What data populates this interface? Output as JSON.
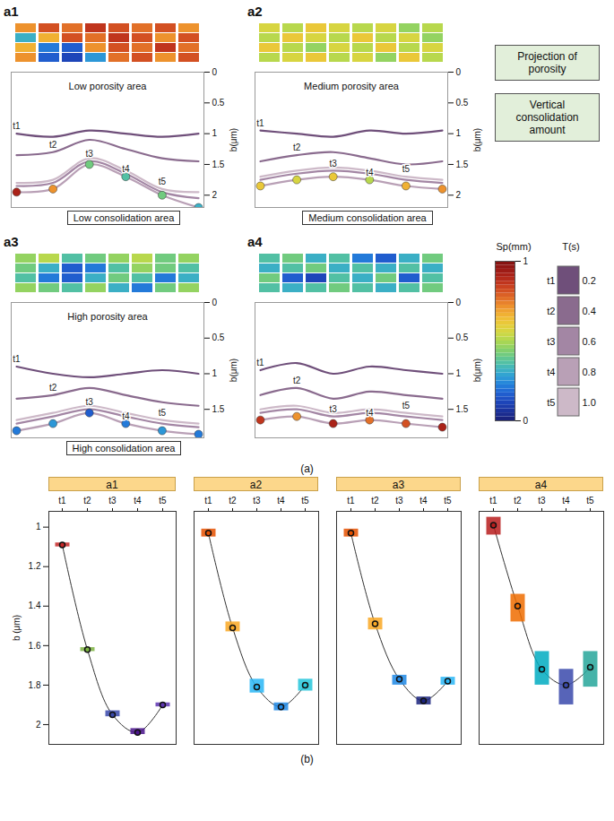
{
  "chart_data": [
    {
      "type": "surface",
      "caption": "(a)",
      "ylabel": "b(μm)",
      "xlim": [
        1,
        6
      ],
      "tick_labels": "y",
      "positions": [
        1,
        2,
        3,
        4,
        5,
        6
      ],
      "notes": [
        "Projection of porosity",
        "Vertical consolidation amount"
      ],
      "porosity_colorbar": {
        "title": "Sp(mm)",
        "range": [
          0,
          1
        ],
        "ticks": [
          0,
          1
        ],
        "colors": [
          "#1a237e",
          "#1e4fd8",
          "#29b6e6",
          "#7fd15a",
          "#f5e33b",
          "#f28b2c",
          "#c0241c",
          "#7a0f0f"
        ]
      },
      "time_legend": {
        "title": "T(s)",
        "names": [
          "t1",
          "t2",
          "t3",
          "t4",
          "t5"
        ],
        "values": [
          0.2,
          0.4,
          0.6,
          0.8,
          1
        ],
        "value_labels": [
          "0.2",
          "0.4",
          "0.6",
          "0.8",
          "1.0"
        ],
        "colors": [
          "#6f4f7a",
          "#8a6b8e",
          "#a386a4",
          "#b9a0b6",
          "#cdb9c8"
        ]
      },
      "panels": [
        {
          "title": "a1",
          "ylim": [
            0,
            2.2
          ],
          "yticks": [
            0,
            0.5,
            1,
            1.5,
            2
          ],
          "porosity": [
            [
              0.7,
              0.8,
              0.75,
              0.85,
              0.8,
              0.75,
              0.8,
              0.7
            ],
            [
              0.3,
              0.65,
              0.8,
              0.75,
              0.85,
              0.8,
              0.7,
              0.8
            ],
            [
              0.65,
              0.2,
              0.15,
              0.7,
              0.8,
              0.75,
              0.85,
              0.75
            ],
            [
              0.7,
              0.15,
              0.1,
              0.25,
              0.75,
              0.8,
              0.7,
              0.8
            ]
          ],
          "layers": [
            {
              "name": "t1",
              "values": [
                1.0,
                1.05,
                0.95,
                1.0,
                1.05,
                1.0
              ]
            },
            {
              "name": "t2",
              "values": [
                1.35,
                1.3,
                1.1,
                1.25,
                1.4,
                1.45
              ]
            },
            {
              "name": "t3",
              "values": [
                1.85,
                1.8,
                1.45,
                1.65,
                1.95,
                2.05
              ]
            },
            {
              "name": "t4",
              "values": [
                1.95,
                1.9,
                1.5,
                1.7,
                2.0,
                2.2
              ]
            },
            {
              "name": "t5",
              "values": [
                1.8,
                1.75,
                1.4,
                1.6,
                1.9,
                1.95
              ]
            }
          ],
          "consolidation": {
            "layer": "t4",
            "values": [
              0.9,
              0.7,
              0.4,
              0.35,
              0.4,
              0.3
            ]
          },
          "porosity_note": "Low porosity area",
          "consolidation_note": "Low consolidation area"
        },
        {
          "title": "a2",
          "ylim": [
            0,
            2.2
          ],
          "yticks": [
            0,
            0.5,
            1,
            1.5,
            2
          ],
          "porosity": [
            [
              0.55,
              0.5,
              0.6,
              0.55,
              0.5,
              0.55,
              0.45,
              0.5
            ],
            [
              0.5,
              0.6,
              0.55,
              0.5,
              0.6,
              0.5,
              0.55,
              0.45
            ],
            [
              0.6,
              0.5,
              0.45,
              0.55,
              0.5,
              0.6,
              0.5,
              0.55
            ],
            [
              0.5,
              0.55,
              0.6,
              0.5,
              0.55,
              0.45,
              0.6,
              0.5
            ]
          ],
          "layers": [
            {
              "name": "t1",
              "values": [
                0.95,
                1.0,
                1.05,
                0.95,
                1.0,
                0.95
              ]
            },
            {
              "name": "t2",
              "values": [
                1.45,
                1.35,
                1.3,
                1.4,
                1.5,
                1.45
              ]
            },
            {
              "name": "t3",
              "values": [
                1.75,
                1.65,
                1.6,
                1.65,
                1.75,
                1.8
              ]
            },
            {
              "name": "t4",
              "values": [
                1.85,
                1.75,
                1.7,
                1.75,
                1.85,
                1.9
              ]
            },
            {
              "name": "t5",
              "values": [
                1.7,
                1.6,
                1.55,
                1.6,
                1.7,
                1.75
              ]
            }
          ],
          "consolidation": {
            "layer": "t4",
            "values": [
              0.6,
              0.55,
              0.6,
              0.5,
              0.65,
              0.7
            ]
          },
          "porosity_note": "Medium porosity area",
          "consolidation_note": "Medium consolidation area"
        },
        {
          "title": "a3",
          "ylim": [
            0,
            1.9
          ],
          "yticks": [
            0,
            0.5,
            1,
            1.5
          ],
          "porosity": [
            [
              0.45,
              0.5,
              0.35,
              0.4,
              0.45,
              0.5,
              0.4,
              0.45
            ],
            [
              0.4,
              0.3,
              0.15,
              0.2,
              0.35,
              0.45,
              0.4,
              0.35
            ],
            [
              0.35,
              0.2,
              0.15,
              0.3,
              0.4,
              0.35,
              0.2,
              0.3
            ],
            [
              0.45,
              0.4,
              0.35,
              0.45,
              0.3,
              0.2,
              0.4,
              0.45
            ]
          ],
          "layers": [
            {
              "name": "t1",
              "values": [
                0.9,
                1.0,
                1.05,
                1.0,
                0.95,
                1.0
              ]
            },
            {
              "name": "t2",
              "values": [
                1.35,
                1.3,
                1.2,
                1.3,
                1.4,
                1.45
              ]
            },
            {
              "name": "t3",
              "values": [
                1.7,
                1.6,
                1.5,
                1.6,
                1.7,
                1.75
              ]
            },
            {
              "name": "t4",
              "values": [
                1.8,
                1.7,
                1.55,
                1.7,
                1.8,
                1.85
              ]
            },
            {
              "name": "t5",
              "values": [
                1.65,
                1.55,
                1.45,
                1.55,
                1.65,
                1.7
              ]
            }
          ],
          "consolidation": {
            "layer": "t4",
            "values": [
              0.2,
              0.25,
              0.15,
              0.2,
              0.25,
              0.2
            ]
          },
          "porosity_note": "High porosity area",
          "consolidation_note": "High consolidation area"
        },
        {
          "title": "a4",
          "ylim": [
            0,
            1.9
          ],
          "yticks": [
            0,
            0.5,
            1,
            1.5
          ],
          "porosity": [
            [
              0.35,
              0.4,
              0.3,
              0.35,
              0.2,
              0.15,
              0.3,
              0.4
            ],
            [
              0.3,
              0.35,
              0.4,
              0.3,
              0.35,
              0.3,
              0.35,
              0.3
            ],
            [
              0.4,
              0.15,
              0.1,
              0.35,
              0.3,
              0.4,
              0.15,
              0.35
            ],
            [
              0.35,
              0.3,
              0.35,
              0.4,
              0.35,
              0.3,
              0.35,
              0.4
            ]
          ],
          "layers": [
            {
              "name": "t1",
              "values": [
                0.95,
                0.85,
                1.0,
                0.9,
                0.95,
                1.0
              ]
            },
            {
              "name": "t2",
              "values": [
                1.3,
                1.2,
                1.35,
                1.25,
                1.3,
                1.35
              ]
            },
            {
              "name": "t3",
              "values": [
                1.55,
                1.5,
                1.6,
                1.55,
                1.6,
                1.65
              ]
            },
            {
              "name": "t4",
              "values": [
                1.65,
                1.6,
                1.7,
                1.65,
                1.7,
                1.75
              ]
            },
            {
              "name": "t5",
              "values": [
                1.5,
                1.45,
                1.55,
                1.5,
                1.55,
                1.6
              ]
            }
          ],
          "consolidation": {
            "layer": "t4",
            "values": [
              0.85,
              0.7,
              0.9,
              0.75,
              0.8,
              0.9
            ]
          }
        }
      ]
    },
    {
      "type": "box",
      "caption": "(b)",
      "ylabel": "b (μm)",
      "categories": [
        "t1",
        "t2",
        "t3",
        "t4",
        "t5"
      ],
      "ylim": [
        0.92,
        2.1
      ],
      "yticks": [
        1,
        1.2,
        1.4,
        1.6,
        1.8,
        2
      ],
      "panels": [
        {
          "title": "a1",
          "values": [
            1.09,
            1.62,
            1.95,
            2.04,
            1.9
          ],
          "low": [
            1.08,
            1.61,
            1.93,
            2.02,
            1.89
          ],
          "high": [
            1.1,
            1.63,
            1.96,
            2.05,
            1.91
          ],
          "colors": [
            "#c62828",
            "#7cb342",
            "#3949ab",
            "#4a148c",
            "#5e35b1"
          ]
        },
        {
          "title": "a2",
          "values": [
            1.03,
            1.51,
            1.81,
            1.91,
            1.8
          ],
          "low": [
            1.01,
            1.48,
            1.77,
            1.89,
            1.77
          ],
          "high": [
            1.05,
            1.53,
            1.84,
            1.93,
            1.83
          ],
          "colors": [
            "#e65100",
            "#f9a825",
            "#29b6f6",
            "#1e88e5",
            "#26c6da"
          ]
        },
        {
          "title": "a3",
          "values": [
            1.03,
            1.49,
            1.77,
            1.88,
            1.78
          ],
          "low": [
            1.01,
            1.46,
            1.75,
            1.86,
            1.76
          ],
          "high": [
            1.05,
            1.52,
            1.8,
            1.9,
            1.8
          ],
          "colors": [
            "#e65100",
            "#f9a825",
            "#1e88e5",
            "#1a237e",
            "#29b6f6"
          ]
        },
        {
          "title": "a4",
          "values": [
            0.99,
            1.4,
            1.72,
            1.8,
            1.71
          ],
          "low": [
            0.95,
            1.34,
            1.63,
            1.72,
            1.63
          ],
          "high": [
            1.04,
            1.48,
            1.8,
            1.9,
            1.81
          ],
          "colors": [
            "#b71c1c",
            "#ef6c00",
            "#00acc1",
            "#3949ab",
            "#26a69a"
          ]
        }
      ]
    }
  ]
}
